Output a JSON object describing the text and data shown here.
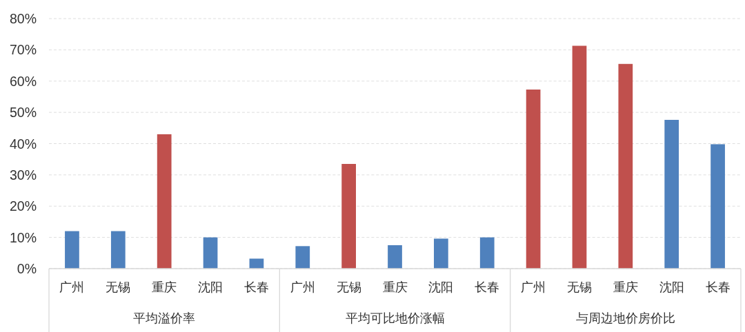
{
  "chart_data": [
    {
      "type": "bar",
      "xlabel": "平均溢价率",
      "categories": [
        "广州",
        "无锡",
        "重庆",
        "沈阳",
        "长春"
      ],
      "values": [
        12,
        12,
        43,
        10,
        3.2
      ],
      "colors": [
        "#4f81bd",
        "#4f81bd",
        "#c0504d",
        "#4f81bd",
        "#4f81bd"
      ],
      "ylim": [
        0,
        80
      ],
      "yticks": [
        {
          "value": 0,
          "label": "0%"
        },
        {
          "value": 10,
          "label": "10%"
        },
        {
          "value": 20,
          "label": "20%"
        },
        {
          "value": 30,
          "label": "30%"
        },
        {
          "value": 40,
          "label": "40%"
        },
        {
          "value": 50,
          "label": "50%"
        },
        {
          "value": 60,
          "label": "60%"
        },
        {
          "value": 70,
          "label": "70%"
        },
        {
          "value": 80,
          "label": "80%"
        }
      ],
      "grid": "y"
    },
    {
      "type": "bar",
      "xlabel": "平均可比地价涨幅",
      "categories": [
        "广州",
        "无锡",
        "重庆",
        "沈阳",
        "长春"
      ],
      "values": [
        7.2,
        33.5,
        7.5,
        9.6,
        10
      ],
      "colors": [
        "#4f81bd",
        "#c0504d",
        "#4f81bd",
        "#4f81bd",
        "#4f81bd"
      ],
      "ylim": [
        0,
        80
      ],
      "yticks": [
        {
          "value": 0,
          "label": null
        },
        {
          "value": 10,
          "label": null
        },
        {
          "value": 20,
          "label": null
        },
        {
          "value": 30,
          "label": null
        },
        {
          "value": 40,
          "label": null
        },
        {
          "value": 50,
          "label": null
        },
        {
          "value": 60,
          "label": null
        },
        {
          "value": 70,
          "label": null
        },
        {
          "value": 80,
          "label": null
        }
      ],
      "grid": "y",
      "tick_labels": "x"
    },
    {
      "type": "bar",
      "xlabel": "与周边地价房价比",
      "categories": [
        "广州",
        "无锡",
        "重庆",
        "沈阳",
        "长春"
      ],
      "values": [
        57.3,
        71.3,
        65.5,
        47.6,
        39.8
      ],
      "colors": [
        "#c0504d",
        "#c0504d",
        "#c0504d",
        "#4f81bd",
        "#4f81bd"
      ],
      "ylim": [
        0,
        80
      ],
      "yticks": [
        {
          "value": 0,
          "label": null
        },
        {
          "value": 10,
          "label": null
        },
        {
          "value": 20,
          "label": null
        },
        {
          "value": 30,
          "label": null
        },
        {
          "value": 40,
          "label": null
        },
        {
          "value": 50,
          "label": null
        },
        {
          "value": 60,
          "label": null
        },
        {
          "value": 70,
          "label": null
        },
        {
          "value": 80,
          "label": null
        }
      ],
      "grid": "y",
      "tick_labels": "x"
    }
  ]
}
